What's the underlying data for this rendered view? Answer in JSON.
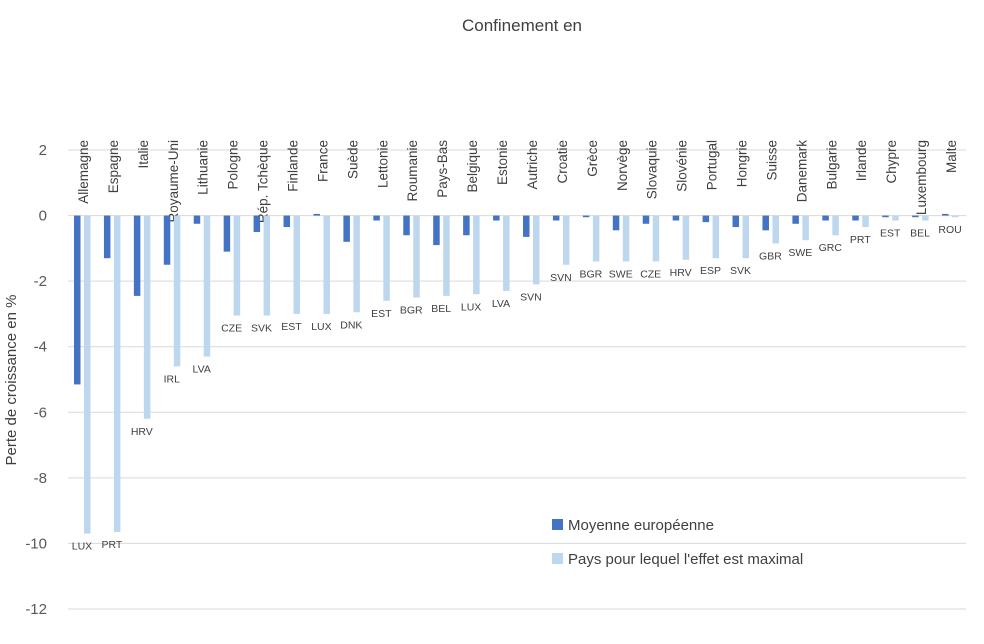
{
  "chart_data": {
    "type": "bar",
    "title": "Confinement en",
    "ylabel": "Perte de croissance en %",
    "xlabel": "",
    "ylim": [
      -12,
      2
    ],
    "yticks": [
      2,
      0,
      -2,
      -4,
      -6,
      -8,
      -10,
      -12
    ],
    "grid": true,
    "category_label_position": "top",
    "legend_position": "bottom-right",
    "categories": [
      "Allemagne",
      "Espagne",
      "Italie",
      "Royaume-Uni",
      "Lithuanie",
      "Pologne",
      "Rép. Tchèque",
      "Finlande",
      "France",
      "Suède",
      "Lettonie",
      "Roumanie",
      "Pays-Bas",
      "Belgique",
      "Estonie",
      "Autriche",
      "Croatie",
      "Grèce",
      "Norvège",
      "Slovaquie",
      "Slovénie",
      "Portugal",
      "Hongrie",
      "Suisse",
      "Danemark",
      "Bulgarie",
      "Irlande",
      "Chypre",
      "Luxembourg",
      "Malte"
    ],
    "series": [
      {
        "name": "Moyenne européenne",
        "color": "#4472c4",
        "values": [
          -5.15,
          -1.3,
          -2.45,
          -1.5,
          -0.25,
          -1.1,
          -0.5,
          -0.35,
          0.05,
          -0.8,
          -0.15,
          -0.6,
          -0.9,
          -0.6,
          -0.15,
          -0.65,
          -0.15,
          -0.05,
          -0.45,
          -0.25,
          -0.15,
          -0.2,
          -0.35,
          -0.45,
          -0.25,
          -0.15,
          -0.15,
          -0.05,
          -0.05,
          0.05
        ]
      },
      {
        "name": "Pays pour lequel l'effet est maximal",
        "color": "#bdd7ee",
        "values": [
          -9.7,
          -9.65,
          -6.2,
          -4.6,
          -4.3,
          -3.05,
          -3.05,
          -3.0,
          -3.0,
          -2.95,
          -2.6,
          -2.5,
          -2.45,
          -2.4,
          -2.3,
          -2.1,
          -1.5,
          -1.4,
          -1.4,
          -1.4,
          -1.35,
          -1.3,
          -1.3,
          -0.85,
          -0.75,
          -0.6,
          -0.35,
          -0.15,
          -0.15,
          -0.05
        ],
        "labels": [
          "LUX",
          "PRT",
          "HRV",
          "IRL",
          "LVA",
          "CZE",
          "SVK",
          "EST",
          "LUX",
          "DNK",
          "EST",
          "BGR",
          "BEL",
          "LUX",
          "LVA",
          "SVN",
          "SVN",
          "BGR",
          "SWE",
          "CZE",
          "HRV",
          "ESP",
          "SVK",
          "GBR",
          "SWE",
          "GRC",
          "PRT",
          "EST",
          "BEL",
          "ROU"
        ]
      }
    ]
  }
}
